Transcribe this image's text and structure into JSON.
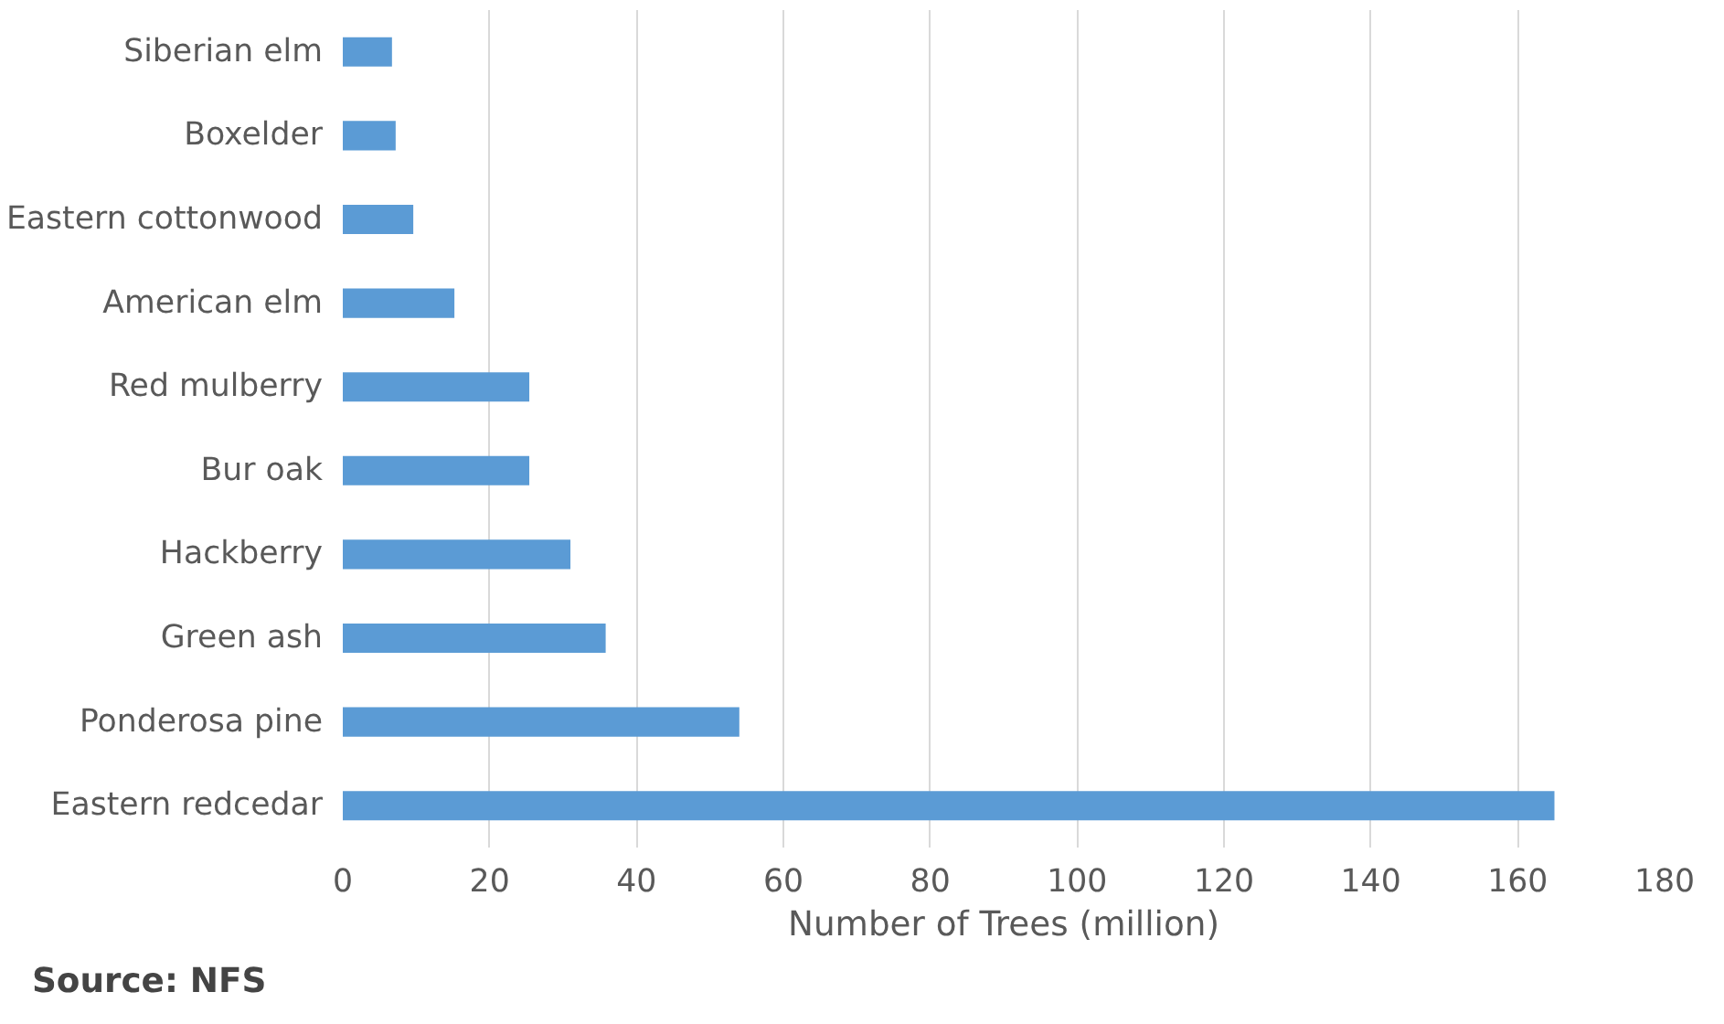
{
  "chart_data": {
    "type": "bar",
    "orientation": "horizontal",
    "xlabel": "Number of Trees (million)",
    "categories": [
      "Siberian elm",
      "Boxelder",
      "Eastern cottonwood",
      "American elm",
      "Red mulberry",
      "Bur oak",
      "Hackberry",
      "Green ash",
      "Ponderosa pine",
      "Eastern redcedar"
    ],
    "values": [
      6.7,
      7.2,
      9.6,
      15.2,
      25.4,
      25.4,
      31,
      35.8,
      54,
      165
    ],
    "color": "#5b9bd5",
    "xlim": [
      0,
      180
    ],
    "xticks": [
      0,
      20,
      40,
      60,
      80,
      100,
      120,
      140,
      160,
      180
    ],
    "grid": "x",
    "annotations": [
      "Source: NFS"
    ]
  }
}
